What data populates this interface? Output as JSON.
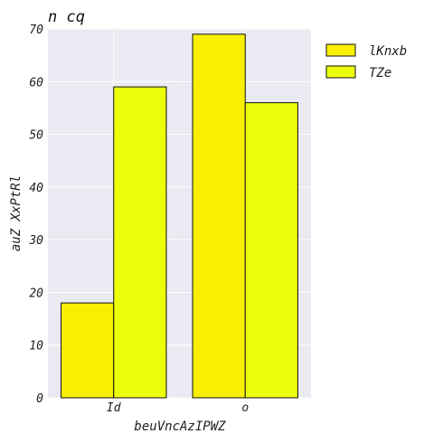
{
  "chart_data": {
    "type": "bar",
    "title": "n cq",
    "xlabel": "beuVncAzIPWZ",
    "ylabel": "auZ XxPtRl",
    "categories": [
      "Id",
      "o"
    ],
    "series": [
      {
        "name": "lKnxb",
        "values": [
          18,
          69
        ],
        "color": "#f8f000"
      },
      {
        "name": "TZe",
        "values": [
          59,
          56
        ],
        "color": "#ecff0a"
      }
    ],
    "ylim": [
      0,
      70
    ],
    "yticks": [
      0,
      10,
      20,
      30,
      40,
      50,
      60,
      70
    ],
    "grid": true,
    "legend_position": "outside-right",
    "background": "#e9eaf2"
  }
}
